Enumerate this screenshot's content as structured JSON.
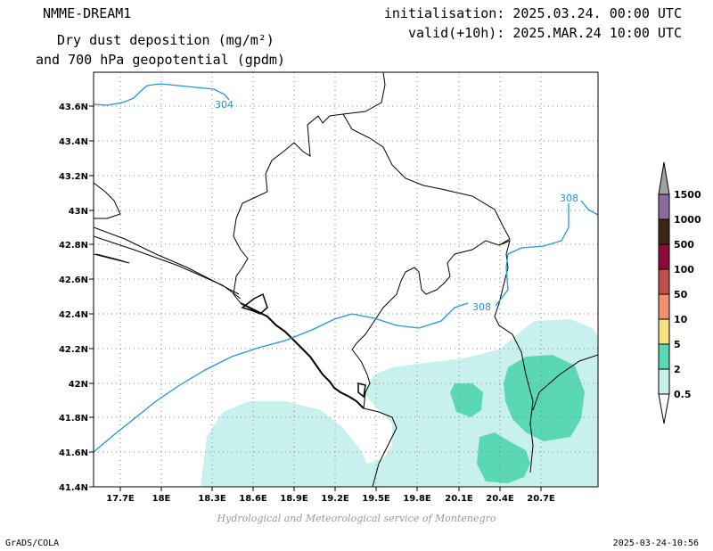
{
  "header": {
    "model": "NMME-DREAM1",
    "title_line1": "Dry dust deposition (mg/m²)",
    "title_line2": "and 700 hPa geopotential (gpdm)",
    "init": "initialisation: 2025.03.24. 00:00 UTC",
    "valid": "valid(+10h): 2025.MAR.24 10:00 UTC"
  },
  "footer": {
    "credit": "Hydrological and Meteorological service of Montenegro",
    "left": "GrADS/COLA",
    "right": "2025-03-24-10:56"
  },
  "map": {
    "lat_labels": [
      "43.6N",
      "43.4N",
      "43.2N",
      "43N",
      "42.8N",
      "42.6N",
      "42.4N",
      "42.2N",
      "42N",
      "41.8N",
      "41.6N",
      "41.4N"
    ],
    "lon_labels": [
      "17.7E",
      "18E",
      "18.3E",
      "18.6E",
      "18.9E",
      "19.2E",
      "19.5E",
      "19.8E",
      "20.1E",
      "20.4E",
      "20.7E"
    ],
    "contour_labels": [
      "304",
      "308",
      "308"
    ],
    "contour_color": "#1e96e6"
  },
  "legend": {
    "levels": [
      "0.5",
      "2",
      "5",
      "10",
      "50",
      "100",
      "500",
      "1000",
      "1500"
    ],
    "colors": [
      "#c8f0ec",
      "#5ad8b4",
      "#f5e182",
      "#f0906e",
      "#c0504a",
      "#8c0a37",
      "#3c2814",
      "#8c6aa0",
      "#a0a0a0"
    ]
  }
}
